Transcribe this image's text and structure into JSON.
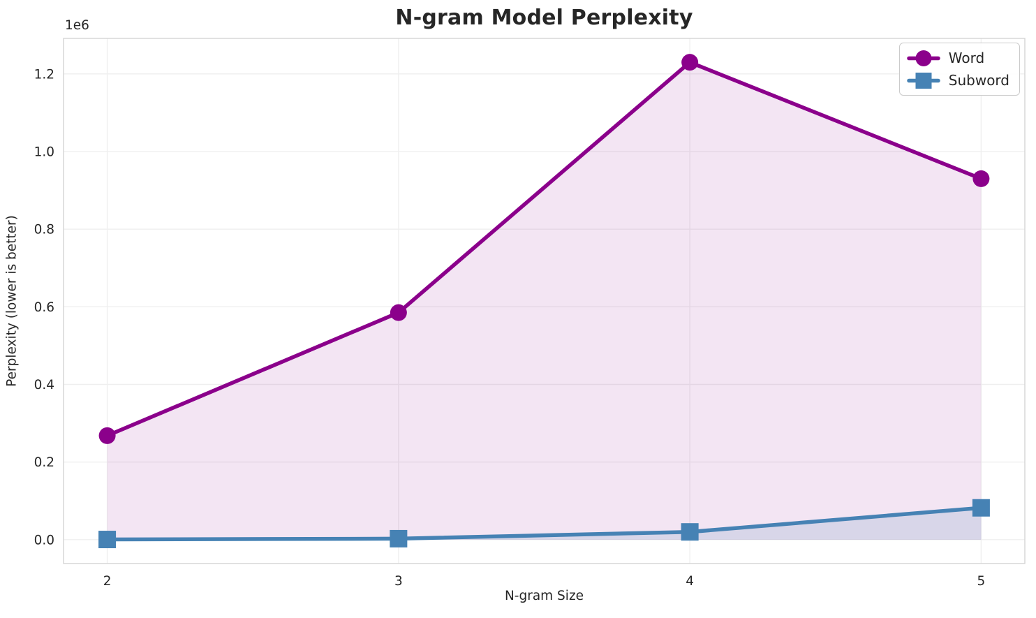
{
  "chart_data": {
    "type": "line",
    "title": "N-gram Model Perplexity",
    "xlabel": "N-gram Size",
    "ylabel": "Perplexity (lower is better)",
    "y_offset_text": "1e6",
    "x": [
      2,
      3,
      4,
      5
    ],
    "xtick_labels": [
      "2",
      "3",
      "4",
      "5"
    ],
    "yticks": [
      0,
      200000,
      400000,
      600000,
      800000,
      1000000,
      1200000
    ],
    "ytick_labels": [
      "0.0",
      "0.2",
      "0.4",
      "0.6",
      "0.8",
      "1.0",
      "1.2"
    ],
    "xlim": [
      1.85,
      5.15
    ],
    "ylim": [
      -61500,
      1291500
    ],
    "grid": true,
    "series": [
      {
        "name": "Word",
        "marker": "circle",
        "color": "#8B008B",
        "fill_opacity": 0.1,
        "values": [
          268000,
          585000,
          1230000,
          930000
        ]
      },
      {
        "name": "Subword",
        "marker": "square",
        "color": "#4682B4",
        "fill_opacity": 0.15,
        "values": [
          500,
          2500,
          20000,
          82000
        ]
      }
    ],
    "legend": {
      "position": "upper right",
      "entries": [
        "Word",
        "Subword"
      ]
    },
    "style": {
      "grid_color": "#efefef",
      "spine_color": "#d4d4d4",
      "text_color": "#262626",
      "line_width": 5.5,
      "circle_radius": 12,
      "square_size": 25
    }
  }
}
